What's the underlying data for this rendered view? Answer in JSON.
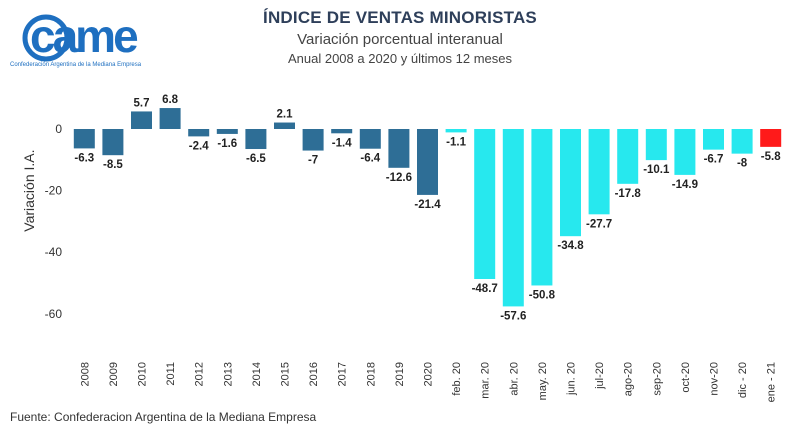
{
  "logo": {
    "text": "came",
    "tagline": "Confederación Argentina de la Mediana Empresa",
    "color": "#1e6fc0"
  },
  "header": {
    "title": "ÍNDICE DE VENTAS MINORISTAS",
    "subtitle": "Variación porcentual interanual",
    "subtitle2": "Anual 2008 a 2020 y últimos 12 meses"
  },
  "source": "Fuente: Confederacion Argentina de la Mediana Empresa",
  "colors": {
    "annual": "#2e6e96",
    "monthly": "#27e8ee",
    "latest": "#ff1a1a",
    "text": "#222222"
  },
  "chart_data": {
    "type": "bar",
    "title": "ÍNDICE DE VENTAS MINORISTAS",
    "ylabel": "Variación I.A.",
    "xlabel": "",
    "ylim": [
      -67,
      10
    ],
    "yticks": [
      0,
      -20,
      -40,
      -60
    ],
    "grid": false,
    "categories": [
      "2008",
      "2009",
      "2010",
      "2011",
      "2012",
      "2013",
      "2014",
      "2015",
      "2016",
      "2017",
      "2018",
      "2019",
      "2020",
      "feb. 20",
      "mar. 20",
      "abr. 20",
      "may. 20",
      "jun. 20",
      "jul-20",
      "ago-20",
      "sep-20",
      "oct-20",
      "nov-20",
      "dic - 20",
      "ene - 21"
    ],
    "values": [
      -6.3,
      -8.5,
      5.7,
      6.8,
      -2.4,
      -1.6,
      -6.5,
      2.1,
      -7,
      -1.4,
      -6.4,
      -12.6,
      -21.4,
      -1.1,
      -48.7,
      -57.6,
      -50.8,
      -34.8,
      -27.7,
      -17.8,
      -10.1,
      -14.9,
      -6.7,
      -8,
      -5.8
    ],
    "labels": [
      "-6.3",
      "-8.5",
      "5.7",
      "6.8",
      "-2.4",
      "-1.6",
      "-6.5",
      "2.1",
      "-7",
      "-1.4",
      "-6.4",
      "-12.6",
      "-21.4",
      "-1.1",
      "-48.7",
      "-57.6",
      "-50.8",
      "-34.8",
      "-27.7",
      "-17.8",
      "-10.1",
      "-14.9",
      "-6.7",
      "-8",
      "-5.8"
    ],
    "groups": [
      "annual",
      "annual",
      "annual",
      "annual",
      "annual",
      "annual",
      "annual",
      "annual",
      "annual",
      "annual",
      "annual",
      "annual",
      "annual",
      "monthly",
      "monthly",
      "monthly",
      "monthly",
      "monthly",
      "monthly",
      "monthly",
      "monthly",
      "monthly",
      "monthly",
      "monthly",
      "latest"
    ]
  }
}
